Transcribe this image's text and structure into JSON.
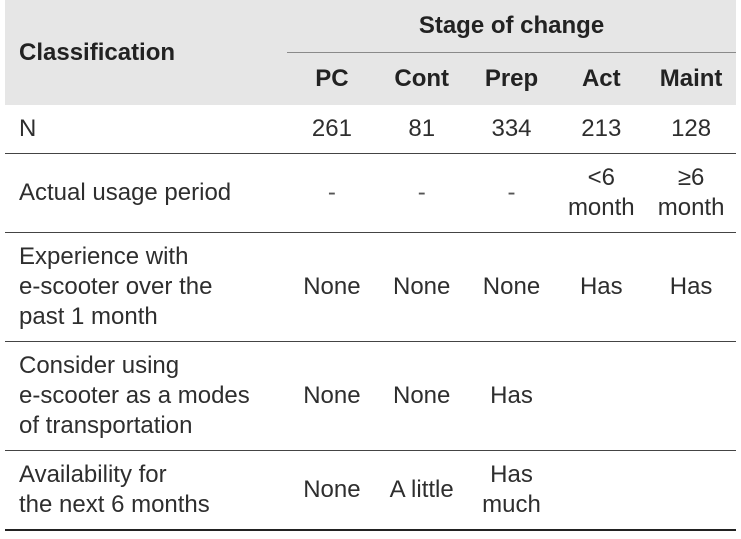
{
  "table": {
    "header": {
      "classification": "Classification",
      "stage_of_change": "Stage of change",
      "stages": [
        "PC",
        "Cont",
        "Prep",
        "Act",
        "Maint"
      ]
    },
    "rows": [
      {
        "label": "N",
        "values": [
          "261",
          "81",
          "334",
          "213",
          "128"
        ]
      },
      {
        "label": "Actual usage period",
        "values": [
          "-",
          "-",
          "-",
          "<6\nmonth",
          "≥6\nmonth"
        ]
      },
      {
        "label": "Experience with\ne-scooter over the\npast 1 month",
        "values": [
          "None",
          "None",
          "None",
          "Has",
          "Has"
        ]
      },
      {
        "label": "Consider using\ne-scooter as a modes\nof transportation",
        "values": [
          "None",
          "None",
          "Has",
          "",
          ""
        ]
      },
      {
        "label": "Availability for\nthe next 6 months",
        "values": [
          "None",
          "A little",
          "Has\nmuch",
          "",
          ""
        ]
      }
    ]
  }
}
